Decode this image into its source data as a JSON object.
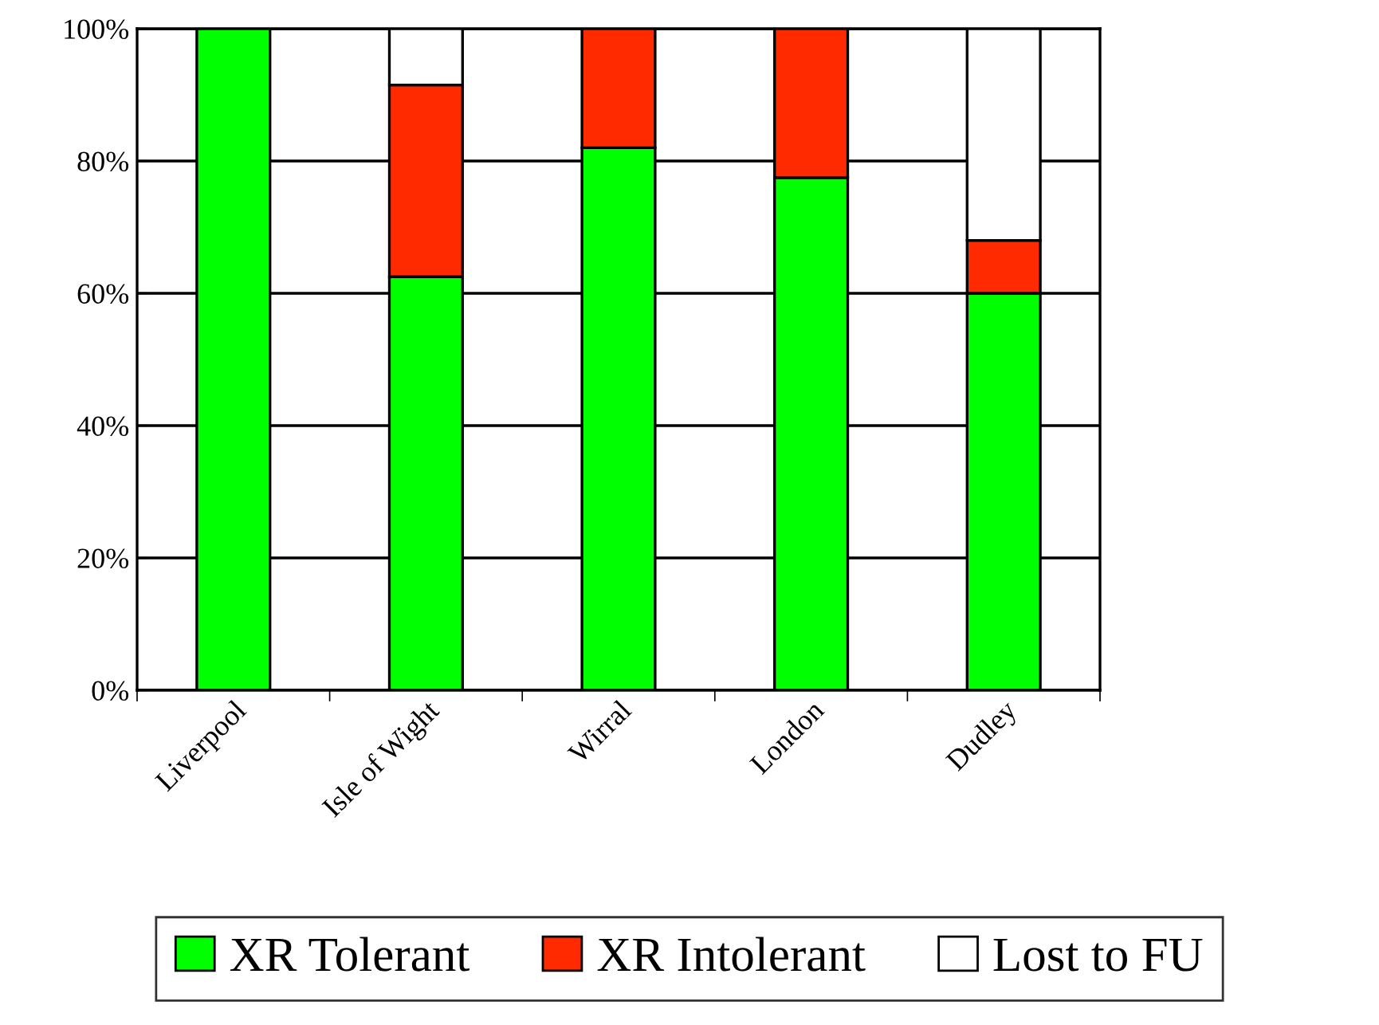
{
  "chart_data": {
    "type": "bar",
    "stacked": true,
    "categories": [
      "Liverpool",
      "Isle of Wight",
      "Wirral",
      "London",
      "Dudley"
    ],
    "series": [
      {
        "name": "XR Tolerant",
        "color": "#00ff00",
        "values": [
          100,
          62.5,
          82,
          77.5,
          60
        ]
      },
      {
        "name": "XR Intolerant",
        "color": "#ff2a00",
        "values": [
          0,
          29,
          18,
          22.5,
          8
        ]
      },
      {
        "name": "Lost to FU",
        "color": "#ffffff",
        "values": [
          0,
          8.5,
          0,
          0,
          32
        ]
      }
    ],
    "ylim": [
      0,
      100
    ],
    "yticks": [
      {
        "value": 0,
        "label": "0%"
      },
      {
        "value": 20,
        "label": "20%"
      },
      {
        "value": 40,
        "label": "40%"
      },
      {
        "value": 60,
        "label": "60%"
      },
      {
        "value": 80,
        "label": "80%"
      },
      {
        "value": 100,
        "label": "100%"
      }
    ],
    "grid": "y",
    "legend": "bottom"
  }
}
